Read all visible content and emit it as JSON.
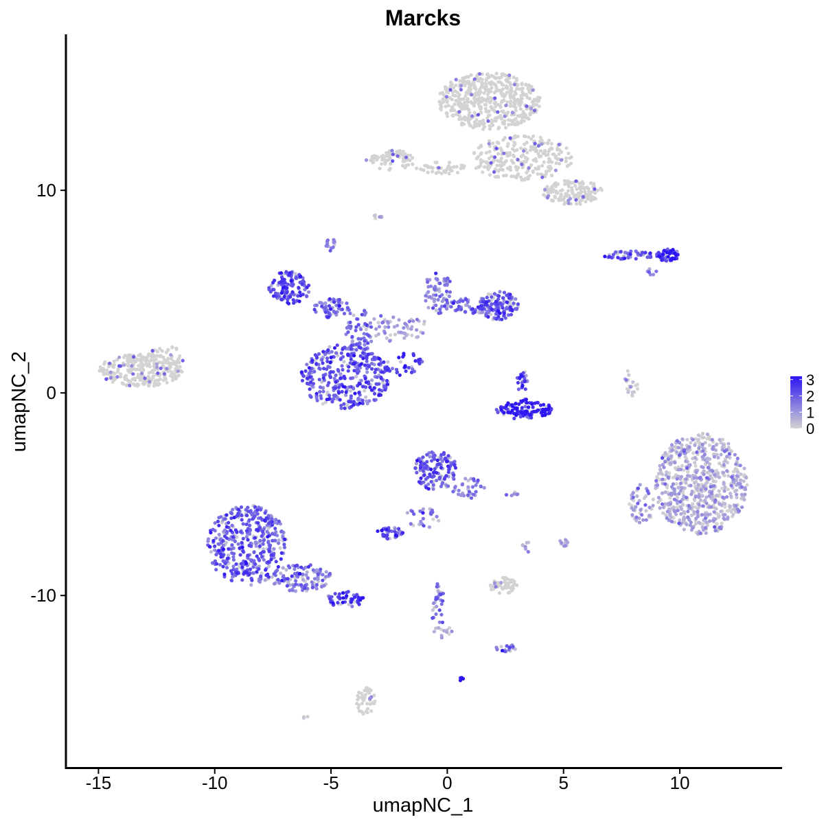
{
  "chart_data": {
    "type": "scatter",
    "title": "Marcks",
    "xlabel": "umapNC_1",
    "ylabel": "umapNC_2",
    "xlim": [
      -16.4,
      14.4
    ],
    "ylim": [
      -18.5,
      17.7
    ],
    "x_ticks": [
      -15,
      -10,
      -5,
      0,
      5,
      10
    ],
    "y_ticks": [
      -10,
      0,
      10
    ],
    "x_tick_labels": [
      "-15",
      "-10",
      "-5",
      "0",
      "5",
      "10"
    ],
    "y_tick_labels": [
      "-10",
      "0",
      "10"
    ],
    "grid": false,
    "legend": {
      "position": "right",
      "type": "colorbar",
      "labels": [
        "3",
        "2",
        "1",
        "0"
      ],
      "min": 0,
      "max": 3.2
    },
    "colors": {
      "low": "#d3d3d3",
      "high": "#2b14f3"
    },
    "clusters": [
      {
        "cx": 1.8,
        "cy": 14.4,
        "rx": 2.2,
        "ry": 1.4,
        "n": 520,
        "expr": 0.08
      },
      {
        "cx": 3.2,
        "cy": 11.6,
        "rx": 2.2,
        "ry": 1.1,
        "n": 260,
        "expr": 0.12
      },
      {
        "cx": 5.4,
        "cy": 9.9,
        "rx": 1.3,
        "ry": 0.6,
        "n": 150,
        "expr": 0.07
      },
      {
        "cx": -2.4,
        "cy": 11.5,
        "rx": 1.1,
        "ry": 0.5,
        "n": 70,
        "expr": 0.05
      },
      {
        "cx": -0.2,
        "cy": 11.1,
        "rx": 1.2,
        "ry": 0.3,
        "n": 40,
        "expr": 0.05
      },
      {
        "cx": -13.2,
        "cy": 1.1,
        "rx": 1.8,
        "ry": 0.8,
        "n": 270,
        "expr": 0.05
      },
      {
        "cx": -12.1,
        "cy": 1.8,
        "rx": 0.8,
        "ry": 0.5,
        "n": 40,
        "expr": 0.1
      },
      {
        "cx": -6.8,
        "cy": 5.2,
        "rx": 0.9,
        "ry": 0.8,
        "n": 120,
        "expr": 2.1
      },
      {
        "cx": -5.0,
        "cy": 4.2,
        "rx": 0.8,
        "ry": 0.5,
        "n": 60,
        "expr": 1.7
      },
      {
        "cx": -4.4,
        "cy": 0.8,
        "rx": 1.9,
        "ry": 1.6,
        "n": 360,
        "expr": 2.0
      },
      {
        "cx": -3.8,
        "cy": 3.0,
        "rx": 0.6,
        "ry": 1.2,
        "n": 60,
        "expr": 1.6
      },
      {
        "cx": -1.8,
        "cy": 1.4,
        "rx": 0.8,
        "ry": 0.6,
        "n": 30,
        "expr": 2.7
      },
      {
        "cx": -2.2,
        "cy": 3.2,
        "rx": 1.4,
        "ry": 0.7,
        "n": 60,
        "expr": 0.8
      },
      {
        "cx": -0.4,
        "cy": 5.0,
        "rx": 0.6,
        "ry": 1.1,
        "n": 70,
        "expr": 1.3
      },
      {
        "cx": 1.2,
        "cy": 4.3,
        "rx": 1.2,
        "ry": 0.4,
        "n": 60,
        "expr": 1.6
      },
      {
        "cx": 2.2,
        "cy": 4.3,
        "rx": 0.9,
        "ry": 0.7,
        "n": 120,
        "expr": 2.0
      },
      {
        "cx": -5.0,
        "cy": 7.3,
        "rx": 0.3,
        "ry": 0.3,
        "n": 15,
        "expr": 1.2
      },
      {
        "cx": -3.0,
        "cy": 8.7,
        "rx": 0.2,
        "ry": 0.1,
        "n": 6,
        "expr": 0.3
      },
      {
        "cx": 3.3,
        "cy": -0.8,
        "rx": 1.2,
        "ry": 0.5,
        "n": 120,
        "expr": 2.8
      },
      {
        "cx": 3.2,
        "cy": 0.6,
        "rx": 0.3,
        "ry": 0.5,
        "n": 25,
        "expr": 2.3
      },
      {
        "cx": 9.5,
        "cy": 6.8,
        "rx": 0.5,
        "ry": 0.3,
        "n": 60,
        "expr": 2.6
      },
      {
        "cx": 7.8,
        "cy": 6.8,
        "rx": 1.1,
        "ry": 0.2,
        "n": 50,
        "expr": 1.8
      },
      {
        "cx": 8.8,
        "cy": 6.0,
        "rx": 0.3,
        "ry": 0.2,
        "n": 8,
        "expr": 1.2
      },
      {
        "cx": 7.9,
        "cy": 0.4,
        "rx": 0.3,
        "ry": 0.8,
        "n": 20,
        "expr": 0.2
      },
      {
        "cx": 10.9,
        "cy": -4.5,
        "rx": 2.0,
        "ry": 2.5,
        "n": 680,
        "expr": 0.5
      },
      {
        "cx": 8.3,
        "cy": -5.5,
        "rx": 0.6,
        "ry": 1.0,
        "n": 50,
        "expr": 0.7
      },
      {
        "cx": -8.6,
        "cy": -7.5,
        "rx": 1.7,
        "ry": 2.0,
        "n": 420,
        "expr": 1.9
      },
      {
        "cx": -6.3,
        "cy": -9.1,
        "rx": 1.3,
        "ry": 0.7,
        "n": 110,
        "expr": 1.5
      },
      {
        "cx": -4.4,
        "cy": -10.2,
        "rx": 0.8,
        "ry": 0.4,
        "n": 55,
        "expr": 2.6
      },
      {
        "cx": -0.5,
        "cy": -3.8,
        "rx": 0.9,
        "ry": 1.0,
        "n": 140,
        "expr": 1.9
      },
      {
        "cx": 0.9,
        "cy": -4.7,
        "rx": 0.7,
        "ry": 0.5,
        "n": 35,
        "expr": 1.4
      },
      {
        "cx": -1.0,
        "cy": -6.1,
        "rx": 0.8,
        "ry": 0.6,
        "n": 25,
        "expr": 1.6
      },
      {
        "cx": -2.5,
        "cy": -6.9,
        "rx": 0.6,
        "ry": 0.3,
        "n": 40,
        "expr": 2.2
      },
      {
        "cx": 2.4,
        "cy": -9.5,
        "rx": 0.6,
        "ry": 0.4,
        "n": 55,
        "expr": 0.05
      },
      {
        "cx": 2.5,
        "cy": -12.6,
        "rx": 0.5,
        "ry": 0.2,
        "n": 18,
        "expr": 1.8
      },
      {
        "cx": -0.4,
        "cy": -10.5,
        "rx": 0.3,
        "ry": 1.2,
        "n": 30,
        "expr": 1.6
      },
      {
        "cx": -0.2,
        "cy": -11.8,
        "rx": 0.4,
        "ry": 0.3,
        "n": 12,
        "expr": 0.6
      },
      {
        "cx": 0.6,
        "cy": -14.1,
        "rx": 0.1,
        "ry": 0.1,
        "n": 6,
        "expr": 3.1
      },
      {
        "cx": -3.5,
        "cy": -15.2,
        "rx": 0.4,
        "ry": 0.7,
        "n": 45,
        "expr": 0.05
      },
      {
        "cx": 5.0,
        "cy": -7.4,
        "rx": 0.2,
        "ry": 0.2,
        "n": 10,
        "expr": 0.9
      },
      {
        "cx": 3.4,
        "cy": -7.6,
        "rx": 0.2,
        "ry": 0.3,
        "n": 8,
        "expr": 0.4
      },
      {
        "cx": 2.8,
        "cy": -5.0,
        "rx": 0.3,
        "ry": 0.1,
        "n": 6,
        "expr": 1.4
      },
      {
        "cx": -6.1,
        "cy": -16.0,
        "rx": 0.1,
        "ry": 0.1,
        "n": 3,
        "expr": 0.5
      }
    ]
  }
}
